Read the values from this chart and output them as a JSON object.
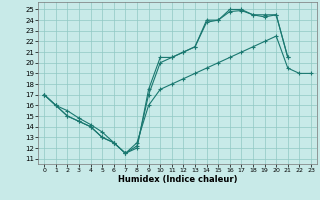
{
  "xlabel": "Humidex (Indice chaleur)",
  "bg_color": "#c8eae8",
  "line_color": "#1a7870",
  "grid_color": "#90c8c4",
  "xlim": [
    -0.5,
    23.5
  ],
  "ylim": [
    10.5,
    25.7
  ],
  "xticks": [
    0,
    1,
    2,
    3,
    4,
    5,
    6,
    7,
    8,
    9,
    10,
    11,
    12,
    13,
    14,
    15,
    16,
    17,
    18,
    19,
    20,
    21,
    22,
    23
  ],
  "yticks": [
    11,
    12,
    13,
    14,
    15,
    16,
    17,
    18,
    19,
    20,
    21,
    22,
    23,
    24,
    25
  ],
  "series": [
    {
      "x": [
        0,
        1,
        2,
        3,
        4,
        5,
        6,
        7,
        8,
        9,
        10,
        11,
        12,
        13,
        14,
        15,
        16,
        17,
        18,
        19,
        20,
        21
      ],
      "y": [
        17.0,
        16.0,
        15.0,
        14.5,
        14.0,
        13.0,
        12.5,
        11.5,
        12.0,
        17.5,
        20.5,
        20.5,
        21.0,
        21.5,
        24.0,
        24.0,
        25.0,
        25.0,
        24.5,
        24.5,
        24.5,
        20.5
      ]
    },
    {
      "x": [
        0,
        1,
        2,
        3,
        4,
        5,
        6,
        7,
        8,
        9,
        10,
        11,
        12,
        13,
        14,
        15,
        16,
        17,
        18,
        19,
        20,
        21
      ],
      "y": [
        17.0,
        16.0,
        15.0,
        14.5,
        14.0,
        13.0,
        12.5,
        11.5,
        12.2,
        17.0,
        20.0,
        20.5,
        21.0,
        21.5,
        23.8,
        24.0,
        24.8,
        24.9,
        24.5,
        24.3,
        24.5,
        20.5
      ]
    },
    {
      "x": [
        0,
        1,
        2,
        3,
        4,
        5,
        6,
        7,
        8,
        9,
        10,
        11,
        12,
        13,
        14,
        15,
        16,
        17,
        18,
        19,
        20,
        21,
        22,
        23
      ],
      "y": [
        17.0,
        16.0,
        15.5,
        14.8,
        14.2,
        13.5,
        12.5,
        11.5,
        12.5,
        16.0,
        17.5,
        18.0,
        18.5,
        19.0,
        19.5,
        20.0,
        20.5,
        21.0,
        21.5,
        22.0,
        22.5,
        19.5,
        19.0,
        19.0
      ]
    }
  ]
}
